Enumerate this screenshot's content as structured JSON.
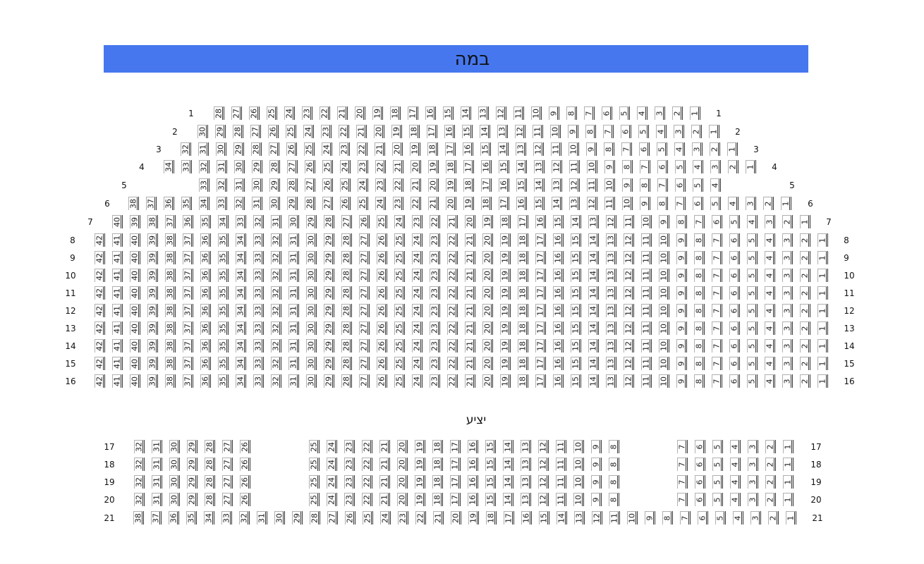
{
  "stage_label": "במה",
  "balcony_label": "יציע",
  "colors": {
    "stage": "#4677ee",
    "seat_border": "#333333"
  },
  "main_rows": [
    {
      "label": "1",
      "blocks": [
        {
          "from": 28,
          "to": 1
        }
      ]
    },
    {
      "label": "2",
      "blocks": [
        {
          "from": 30,
          "to": 1
        }
      ]
    },
    {
      "label": "3",
      "blocks": [
        {
          "from": 32,
          "to": 1
        }
      ]
    },
    {
      "label": "4",
      "blocks": [
        {
          "from": 34,
          "to": 1
        }
      ]
    },
    {
      "label": "5",
      "blocks": [
        {
          "from": 33,
          "to": 4
        }
      ]
    },
    {
      "label": "6",
      "blocks": [
        {
          "from": 38,
          "to": 1
        }
      ]
    },
    {
      "label": "7",
      "blocks": [
        {
          "from": 40,
          "to": 1
        }
      ]
    },
    {
      "label": "8",
      "blocks": [
        {
          "from": 42,
          "to": 1
        }
      ]
    },
    {
      "label": "9",
      "blocks": [
        {
          "from": 42,
          "to": 1
        }
      ]
    },
    {
      "label": "10",
      "blocks": [
        {
          "from": 42,
          "to": 1
        }
      ]
    },
    {
      "label": "11",
      "blocks": [
        {
          "from": 42,
          "to": 1
        }
      ]
    },
    {
      "label": "12",
      "blocks": [
        {
          "from": 42,
          "to": 1
        }
      ]
    },
    {
      "label": "13",
      "blocks": [
        {
          "from": 42,
          "to": 1
        }
      ]
    },
    {
      "label": "14",
      "blocks": [
        {
          "from": 42,
          "to": 1
        }
      ]
    },
    {
      "label": "15",
      "blocks": [
        {
          "from": 42,
          "to": 1
        }
      ]
    },
    {
      "label": "16",
      "blocks": [
        {
          "from": 42,
          "to": 1
        }
      ]
    }
  ],
  "balcony_rows": [
    {
      "label": "17",
      "blocks": [
        {
          "from": 32,
          "to": 26
        },
        {
          "from": 25,
          "to": 8
        },
        {
          "from": 7,
          "to": 1
        }
      ]
    },
    {
      "label": "18",
      "blocks": [
        {
          "from": 32,
          "to": 26
        },
        {
          "from": 25,
          "to": 8
        },
        {
          "from": 7,
          "to": 1
        }
      ]
    },
    {
      "label": "19",
      "blocks": [
        {
          "from": 32,
          "to": 26
        },
        {
          "from": 25,
          "to": 8
        },
        {
          "from": 7,
          "to": 1
        }
      ]
    },
    {
      "label": "20",
      "blocks": [
        {
          "from": 32,
          "to": 26
        },
        {
          "from": 25,
          "to": 8
        },
        {
          "from": 7,
          "to": 1
        }
      ]
    },
    {
      "label": "21",
      "blocks": [
        {
          "from": 38,
          "to": 1
        }
      ]
    }
  ]
}
